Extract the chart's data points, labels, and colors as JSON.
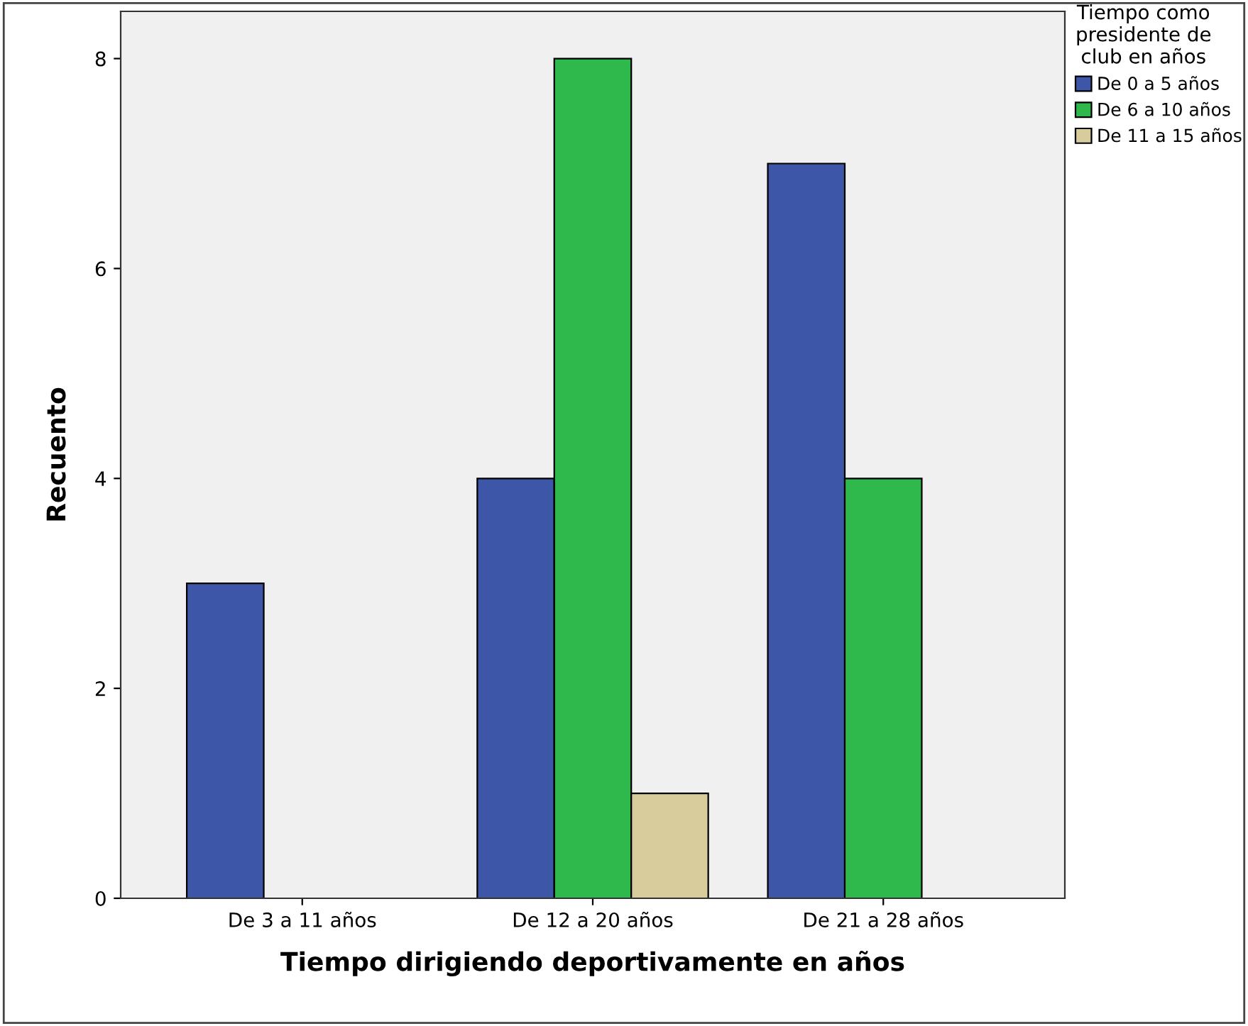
{
  "chart_data": {
    "type": "bar",
    "xlabel": "Tiempo dirigiendo deportivamente en años",
    "ylabel": "Recuento",
    "legend_title": "Tiempo como\npresidente de\nclub en años",
    "categories": [
      "De 3 a 11 años",
      "De 12 a 20 años",
      "De 21 a 28 años"
    ],
    "series": [
      {
        "name": "De 0 a 5 años",
        "color": "#3d56a8",
        "values": [
          3,
          4,
          7
        ]
      },
      {
        "name": "De 6 a 10 años",
        "color": "#2fb84c",
        "values": [
          null,
          8,
          4
        ]
      },
      {
        "name": "De 11 a 15 años",
        "color": "#d8cc9c",
        "values": [
          null,
          1,
          null
        ]
      }
    ],
    "ylim": [
      0,
      8.45
    ],
    "yticks": [
      0,
      2,
      4,
      6,
      8
    ],
    "grid": false,
    "legend": "top right"
  }
}
